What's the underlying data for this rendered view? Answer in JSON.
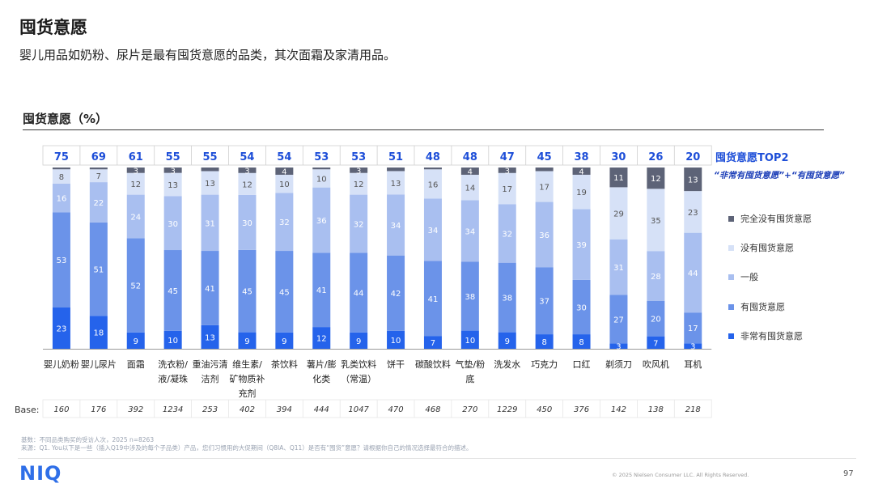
{
  "header": {
    "title": "囤货意愿",
    "subtitle": "婴儿用品如奶粉、尿片是最有囤货意愿的品类，其次面霜及家清用品。"
  },
  "chart_title": "囤货意愿（%）",
  "top2": {
    "title": "囤货意愿TOP2",
    "subtitle": "“非常有囤货意愿”+“有囤货意愿”"
  },
  "base_label": "Base:",
  "chart_data": {
    "type": "bar",
    "stacked": true,
    "categories": [
      "婴儿奶粉",
      "婴儿尿片",
      "面霜",
      "洗衣粉/液/凝珠",
      "重油污清洁剂",
      "维生素/矿物质补充剂",
      "茶饮料",
      "薯片/膨化类",
      "乳类饮料（常温）",
      "饼干",
      "碳酸饮料",
      "气垫/粉底",
      "洗发水",
      "巧克力",
      "口红",
      "剃须刀",
      "吹风机",
      "耳机"
    ],
    "category_lines": [
      [
        "婴儿奶粉"
      ],
      [
        "婴儿尿片"
      ],
      [
        "面霜"
      ],
      [
        "洗衣粉/",
        "液/凝珠"
      ],
      [
        "重油污清",
        "洁剂"
      ],
      [
        "维生素/",
        "矿物质补",
        "充剂"
      ],
      [
        "茶饮料"
      ],
      [
        "薯片/膨",
        "化类"
      ],
      [
        "乳类饮料",
        "（常温）"
      ],
      [
        "饼干"
      ],
      [
        "碳酸饮料"
      ],
      [
        "气垫/粉",
        "底"
      ],
      [
        "洗发水"
      ],
      [
        "巧克力"
      ],
      [
        "口红"
      ],
      [
        "剃须刀"
      ],
      [
        "吹风机"
      ],
      [
        "耳机"
      ]
    ],
    "top2": [
      75,
      69,
      61,
      55,
      55,
      54,
      54,
      53,
      53,
      51,
      48,
      48,
      47,
      45,
      38,
      30,
      26,
      20
    ],
    "base": [
      160,
      176,
      392,
      1234,
      253,
      402,
      394,
      444,
      1047,
      470,
      468,
      270,
      1229,
      450,
      376,
      142,
      138,
      218
    ],
    "series": [
      {
        "name": "非常有囤货意愿",
        "color": "#2563eb",
        "values": [
          23,
          18,
          9,
          10,
          13,
          9,
          9,
          12,
          9,
          10,
          7,
          10,
          9,
          8,
          8,
          3,
          7,
          3
        ]
      },
      {
        "name": "有囤货意愿",
        "color": "#6b93e9",
        "values": [
          53,
          51,
          52,
          45,
          41,
          45,
          45,
          41,
          44,
          42,
          41,
          38,
          38,
          37,
          30,
          27,
          20,
          17
        ]
      },
      {
        "name": "一般",
        "color": "#a9bff0",
        "values": [
          16,
          22,
          24,
          30,
          31,
          30,
          32,
          36,
          32,
          34,
          34,
          34,
          32,
          36,
          39,
          31,
          28,
          44
        ]
      },
      {
        "name": "没有囤货意愿",
        "color": "#d6e1f7",
        "values": [
          8,
          7,
          12,
          13,
          13,
          12,
          10,
          10,
          12,
          13,
          16,
          14,
          17,
          17,
          19,
          29,
          35,
          23
        ]
      },
      {
        "name": "完全没有囤货意愿",
        "color": "#5d6377",
        "values": [
          1,
          1,
          3,
          3,
          2,
          3,
          4,
          1,
          3,
          2,
          1,
          4,
          3,
          2,
          4,
          11,
          12,
          13
        ]
      }
    ],
    "label_colors": [
      "#ffffff",
      "#ffffff",
      "#ffffff",
      "#555555",
      "#ffffff"
    ],
    "hide_threshold": 3,
    "ylim": [
      0,
      100
    ]
  },
  "legend": [
    {
      "label": "完全没有囤货意愿",
      "color": "#5d6377"
    },
    {
      "label": "没有囤货意愿",
      "color": "#d6e1f7"
    },
    {
      "label": "一般",
      "color": "#a9bff0"
    },
    {
      "label": "有囤货意愿",
      "color": "#6b93e9"
    },
    {
      "label": "非常有囤货意愿",
      "color": "#2563eb"
    }
  ],
  "colors": {
    "top2_number": "#1d4ed8",
    "accent": "#2563eb"
  },
  "footer": {
    "source_line1": "基数：不同品类购买的受访人次，2025 n=8263",
    "source_line2": "来源：Q1. You以下是一些（插入Q19中涉及的每个子品类）产品，您们习惯用的大促期间（Q8IA、Q11）是否有“囤货”意愿？请根据你自己的情况选择最符合的描述。",
    "logo": "NIQ",
    "copyright": "© 2025 Nielsen Consumer LLC. All Rights Reserved.",
    "page_number": "97"
  }
}
